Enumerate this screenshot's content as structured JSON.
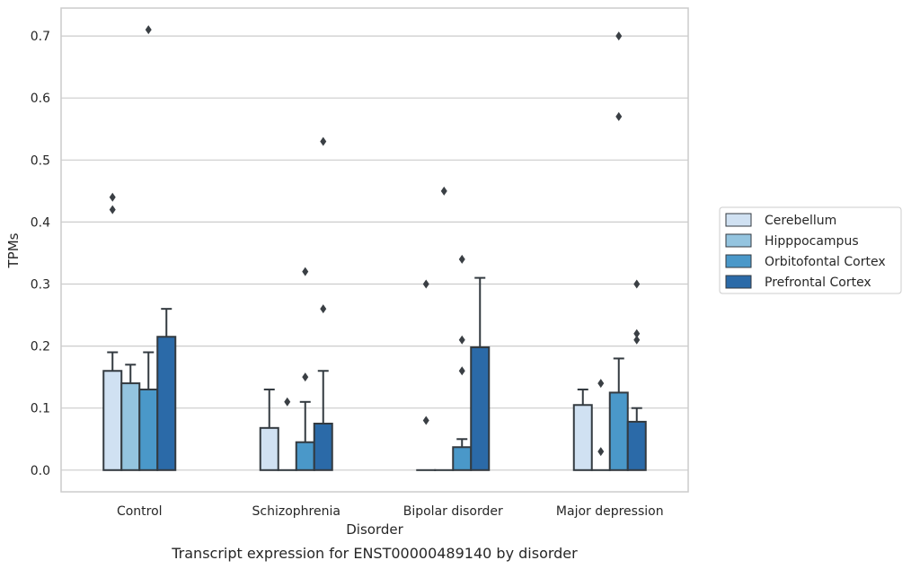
{
  "chart_data": {
    "type": "bar",
    "title": "",
    "caption": "Transcript expression for ENST00000489140 by disorder",
    "xlabel": "Disorder",
    "ylabel": "TPMs",
    "ylim": [
      -0.035,
      0.745
    ],
    "yticks": [
      0.0,
      0.1,
      0.2,
      0.3,
      0.4,
      0.5,
      0.6,
      0.7
    ],
    "ytick_labels": [
      "0.0",
      "0.1",
      "0.2",
      "0.3",
      "0.4",
      "0.5",
      "0.6",
      "0.7"
    ],
    "grid": true,
    "legend_position": "right",
    "categories": [
      "Control",
      "Schizophrenia",
      "Bipolar disorder",
      "Major depression"
    ],
    "series": [
      {
        "name": "Cerebellum",
        "color": "#d0e1f2",
        "values": [
          0.16,
          0.068,
          0.0,
          0.105
        ],
        "error_upper": [
          0.19,
          0.13,
          null,
          0.13
        ],
        "outliers": [
          [
            0.44,
            0.42
          ],
          [],
          [
            0.3,
            0.08
          ],
          []
        ]
      },
      {
        "name": "Hipppocampus",
        "color": "#94c4df",
        "values": [
          0.14,
          0.0,
          0.0,
          0.0
        ],
        "error_upper": [
          0.17,
          null,
          null,
          null
        ],
        "outliers": [
          [],
          [
            0.11
          ],
          [
            0.45
          ],
          [
            0.14,
            0.03
          ]
        ]
      },
      {
        "name": "Orbitofontal Cortex",
        "color": "#4a98c9",
        "values": [
          0.13,
          0.045,
          0.037,
          0.125
        ],
        "error_upper": [
          0.19,
          0.11,
          0.05,
          0.18
        ],
        "outliers": [
          [
            0.71
          ],
          [
            0.32,
            0.15
          ],
          [
            0.34,
            0.21,
            0.16
          ],
          [
            0.7,
            0.57
          ]
        ]
      },
      {
        "name": "Prefrontal Cortex",
        "color": "#2b6aa8",
        "values": [
          0.215,
          0.075,
          0.198,
          0.078
        ],
        "error_upper": [
          0.26,
          0.16,
          0.31,
          0.1
        ],
        "outliers": [
          [],
          [
            0.53,
            0.26
          ],
          [],
          [
            0.3,
            0.22,
            0.21
          ]
        ]
      }
    ]
  }
}
